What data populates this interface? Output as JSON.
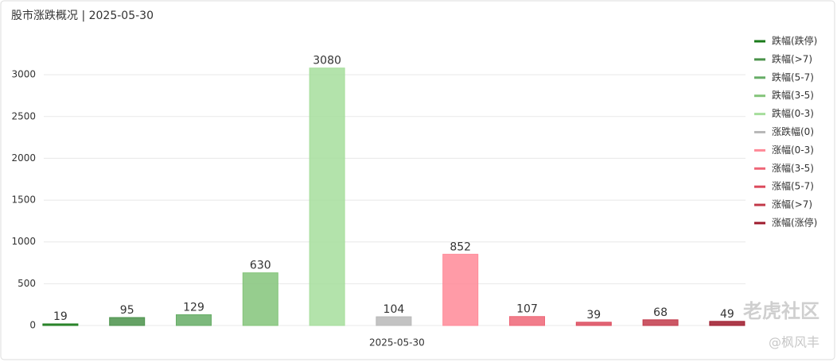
{
  "chart_data": {
    "type": "bar",
    "title": "股市涨跌概况 | 2025-05-30",
    "categories": [
      "2025-05-30"
    ],
    "series": [
      {
        "name": "跌幅(跌停)",
        "color": "#1a7a1a",
        "values": [
          19
        ]
      },
      {
        "name": "跌幅(>7)",
        "color": "#4a924a",
        "values": [
          95
        ]
      },
      {
        "name": "跌幅(5-7)",
        "color": "#66ad66",
        "values": [
          129
        ]
      },
      {
        "name": "跌幅(3-5)",
        "color": "#84c47a",
        "values": [
          630
        ]
      },
      {
        "name": "跌幅(0-3)",
        "color": "#a6de9c",
        "values": [
          3080
        ]
      },
      {
        "name": "涨跌幅(0)",
        "color": "#b8b8b8",
        "values": [
          104
        ]
      },
      {
        "name": "涨幅(0-3)",
        "color": "#ff8a98",
        "values": [
          852
        ]
      },
      {
        "name": "涨幅(3-5)",
        "color": "#ee6677",
        "values": [
          107
        ]
      },
      {
        "name": "涨幅(5-7)",
        "color": "#dc4a5c",
        "values": [
          39
        ]
      },
      {
        "name": "涨幅(>7)",
        "color": "#c23a4a",
        "values": [
          68
        ]
      },
      {
        "name": "涨幅(涨停)",
        "color": "#9e1a2c",
        "values": [
          49
        ]
      }
    ],
    "ylim": [
      0,
      3500
    ],
    "yticks": [
      0,
      500,
      1000,
      1500,
      2000,
      2500,
      3000
    ],
    "grid": true,
    "legend": "right",
    "watermark": [
      "老虎社区",
      "@枫风丰"
    ]
  }
}
